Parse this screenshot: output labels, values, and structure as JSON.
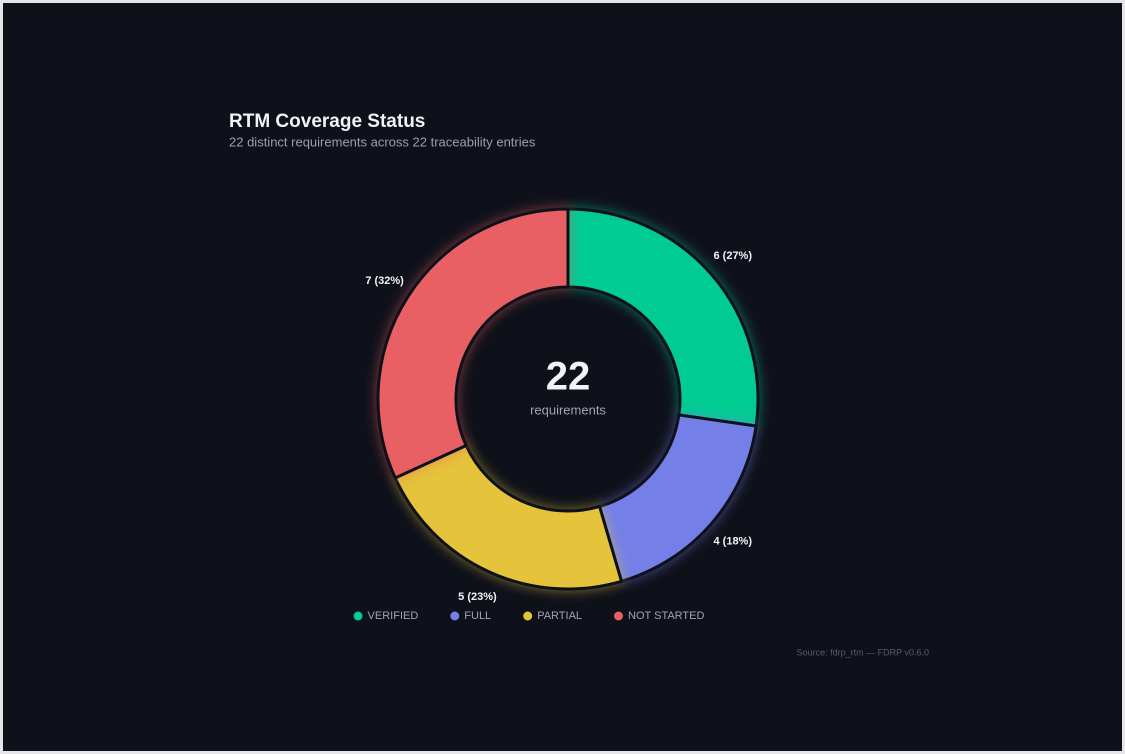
{
  "chart_data": {
    "type": "donut",
    "title": "RTM Coverage Status",
    "subtitle": "22 distinct requirements across 22 traceability entries",
    "categories": [
      "VERIFIED",
      "FULL",
      "PARTIAL",
      "NOT STARTED"
    ],
    "values": [
      6,
      4,
      5,
      7
    ],
    "value_labels": [
      "6 (27%)",
      "4 (18%)",
      "5 (23%)",
      "7 (32%)"
    ],
    "colors": [
      "#00cc92",
      "#7480e8",
      "#e5c33a",
      "#e86064"
    ],
    "center_value": 22,
    "center_label": "requirements",
    "legend": "bottom",
    "source": "Source: fdrp_rtm — FDRP v0.6.0"
  }
}
